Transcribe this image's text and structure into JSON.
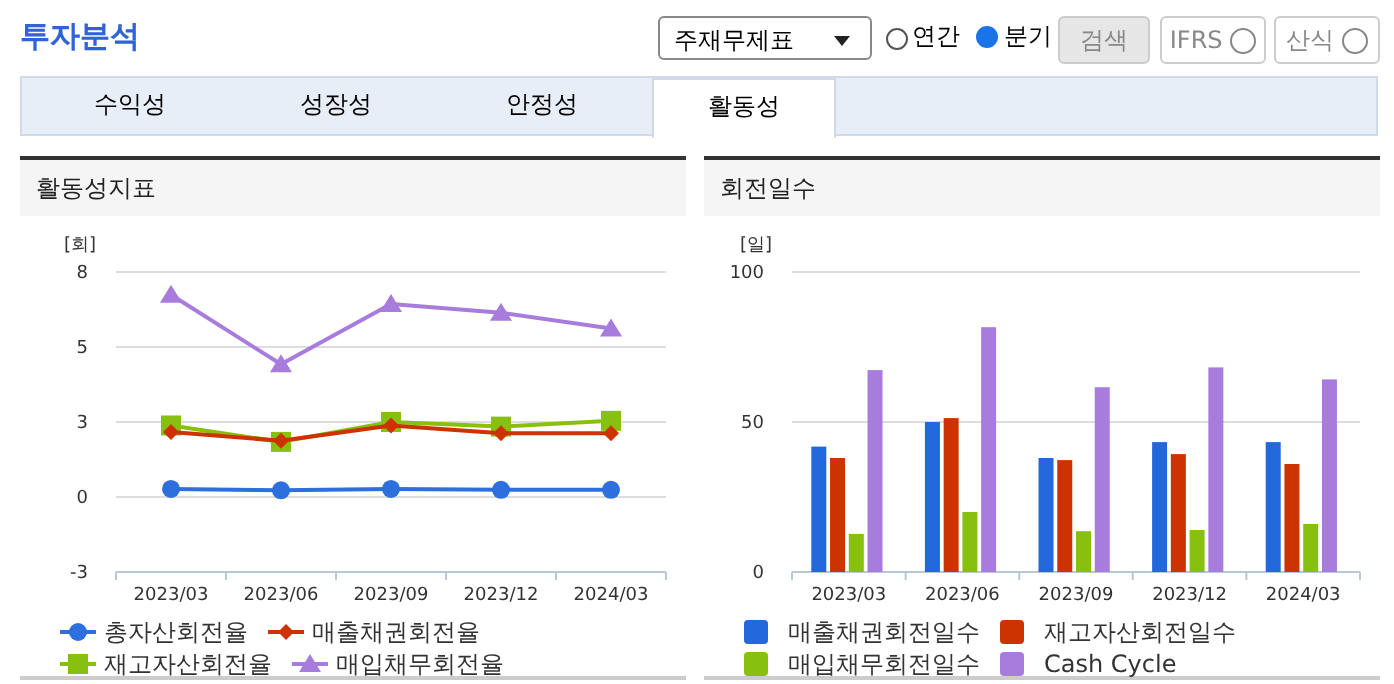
{
  "chart_data": [
    {
      "type": "other",
      "annotations": [
        "투자분석",
        "주재무제표",
        "연간",
        "분기",
        "검색",
        "IFRS",
        "산식",
        "수익성",
        "성장성",
        "안정성",
        "활동성"
      ]
    },
    {
      "type": "line",
      "title": "활동성지표",
      "ylabel": "[회]",
      "categories": [
        "2023/03",
        "2023/06",
        "2023/09",
        "2023/12",
        "2024/03"
      ],
      "ylim": [
        -2.6,
        7.8
      ],
      "yticks": [
        {
          "value": -2.6,
          "label": "-3"
        },
        0,
        {
          "value": 2.6,
          "label": "3"
        },
        {
          "value": 5.2,
          "label": "5"
        },
        {
          "value": 7.8,
          "label": "8"
        }
      ],
      "grid": "y",
      "legend": "bottom",
      "series": [
        {
          "name": "총자산회전율",
          "color": "#2d6fdc",
          "marker": "circle",
          "values": [
            0.28,
            0.23,
            0.28,
            0.25,
            0.25
          ]
        },
        {
          "name": "매출채권회전율",
          "color": "#cc3300",
          "marker": "diamond",
          "values": [
            2.25,
            1.95,
            2.48,
            2.21,
            2.21
          ]
        },
        {
          "name": "재고자산회전율",
          "color": "#88c010",
          "marker": "square",
          "values": [
            2.48,
            1.91,
            2.6,
            2.44,
            2.64
          ]
        },
        {
          "name": "매입채무회전율",
          "color": "#a87cdc",
          "marker": "triangle",
          "values": [
            7.01,
            4.6,
            6.69,
            6.39,
            5.84
          ]
        }
      ]
    },
    {
      "type": "bar",
      "title": "회전일수",
      "ylabel": "[일]",
      "categories": [
        "2023/03",
        "2023/06",
        "2023/09",
        "2023/12",
        "2024/03"
      ],
      "ylim": [
        0,
        100
      ],
      "yticks": [
        0,
        50,
        100
      ],
      "grid": "y",
      "legend": "bottom",
      "series": [
        {
          "name": "매출채권회전일수",
          "color": "#2268dc",
          "values": [
            41.8,
            50,
            38,
            43.3,
            43.3
          ]
        },
        {
          "name": "재고자산회전일수",
          "color": "#cc3300",
          "values": [
            38,
            51.3,
            37.3,
            39.3,
            36
          ]
        },
        {
          "name": "매입채무회전일수",
          "color": "#88c010",
          "values": [
            12.7,
            20,
            13.6,
            14,
            16
          ]
        },
        {
          "name": "Cash Cycle",
          "color": "#a87cdc",
          "values": [
            67.3,
            81.6,
            61.6,
            68.2,
            64.2
          ]
        }
      ]
    }
  ]
}
